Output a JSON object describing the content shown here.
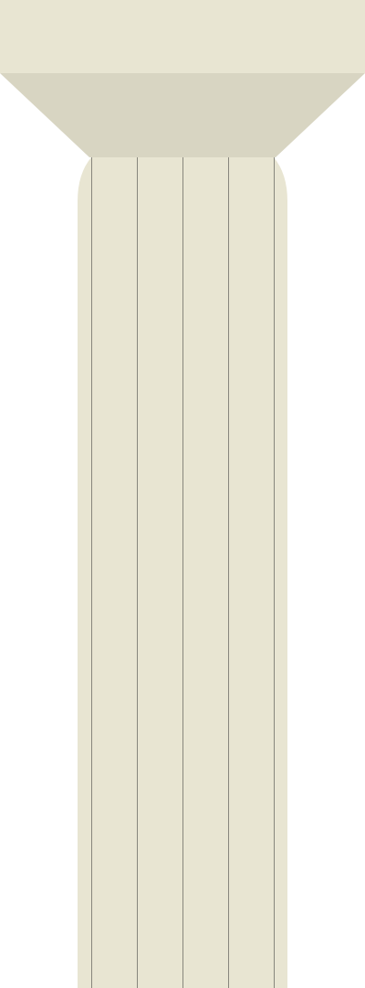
{
  "column": {
    "abacus_color": "#e8e5d2",
    "echinus_color": "#d8d5c2",
    "shaft_color": "#e8e5d2",
    "flute_line_color": "#6e6e66",
    "background_color": "#ffffff"
  }
}
